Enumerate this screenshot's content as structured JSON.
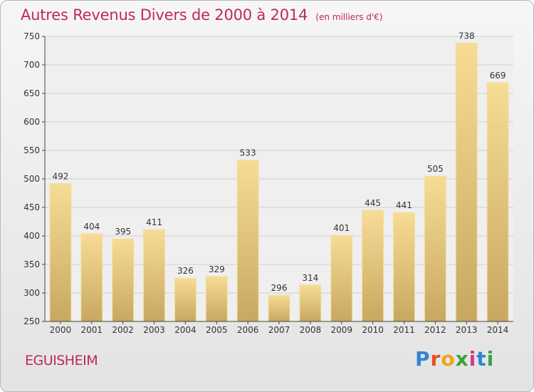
{
  "header": {
    "title": "Autres Revenus Divers de 2000 à 2014",
    "subtitle": "(en milliers d'€)"
  },
  "footer": {
    "commune": "EGUISHEIM",
    "logo_text": "Proxiti"
  },
  "colors": {
    "title": "#c0285a",
    "bar_top": "#f7dc96",
    "bar_bottom": "#c8a860",
    "grid": "#cfcfcf",
    "plot_bg": "#efefef"
  },
  "chart_data": {
    "type": "bar",
    "title": "Autres Revenus Divers de 2000 à 2014",
    "xlabel": "",
    "ylabel": "",
    "ylim": [
      250,
      750
    ],
    "yticks": [
      250,
      300,
      350,
      400,
      450,
      500,
      550,
      600,
      650,
      700,
      750
    ],
    "grid": true,
    "categories": [
      "2000",
      "2001",
      "2002",
      "2003",
      "2004",
      "2005",
      "2006",
      "2007",
      "2008",
      "2009",
      "2010",
      "2011",
      "2012",
      "2013",
      "2014"
    ],
    "values": [
      492,
      404,
      395,
      411,
      326,
      329,
      533,
      296,
      314,
      401,
      445,
      441,
      505,
      738,
      669
    ]
  }
}
